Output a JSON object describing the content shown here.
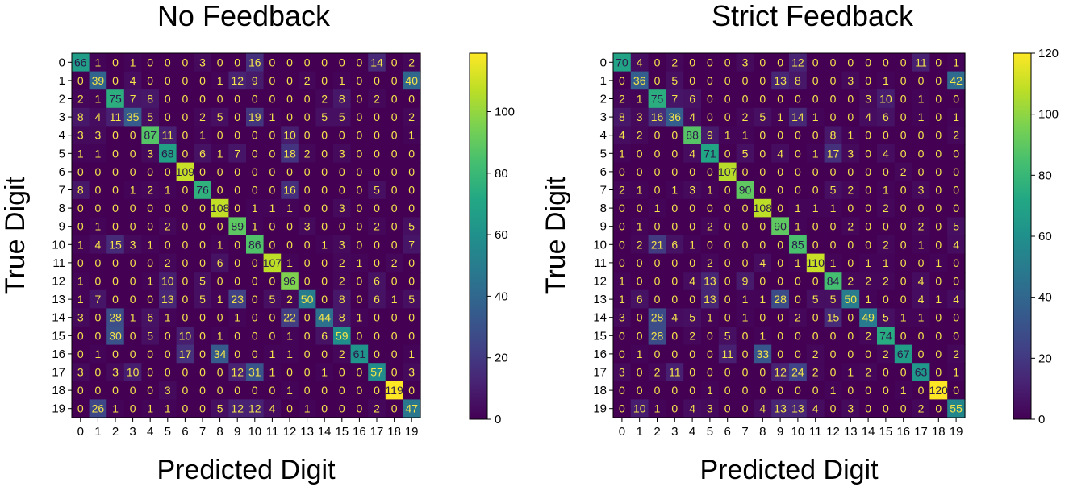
{
  "chart_data": [
    {
      "type": "heatmap",
      "title": "No Feedback",
      "xlabel": "Predicted Digit",
      "ylabel": "True Digit",
      "x_ticks": [
        "0",
        "1",
        "2",
        "3",
        "4",
        "5",
        "6",
        "7",
        "8",
        "9",
        "10",
        "11",
        "12",
        "13",
        "14",
        "15",
        "16",
        "17",
        "18",
        "19"
      ],
      "y_ticks": [
        "0",
        "1",
        "2",
        "3",
        "4",
        "5",
        "6",
        "7",
        "8",
        "9",
        "10",
        "11",
        "12",
        "13",
        "14",
        "15",
        "16",
        "17",
        "18",
        "19"
      ],
      "colorbar": {
        "min": 0,
        "max": 119,
        "ticks": [
          0,
          20,
          40,
          60,
          80,
          100
        ]
      },
      "colormap": "viridis",
      "values": [
        [
          66,
          1,
          0,
          1,
          0,
          0,
          0,
          3,
          0,
          0,
          16,
          0,
          0,
          0,
          0,
          0,
          0,
          14,
          0,
          2
        ],
        [
          0,
          39,
          0,
          4,
          0,
          0,
          0,
          0,
          1,
          12,
          9,
          0,
          0,
          2,
          0,
          1,
          0,
          0,
          0,
          40
        ],
        [
          2,
          1,
          75,
          7,
          8,
          0,
          0,
          0,
          0,
          0,
          0,
          0,
          0,
          0,
          2,
          8,
          0,
          2,
          0,
          0
        ],
        [
          8,
          4,
          11,
          35,
          5,
          0,
          0,
          2,
          5,
          0,
          19,
          1,
          0,
          0,
          5,
          5,
          0,
          0,
          0,
          2
        ],
        [
          3,
          3,
          0,
          0,
          87,
          11,
          0,
          1,
          0,
          0,
          0,
          0,
          10,
          0,
          0,
          0,
          0,
          0,
          0,
          1
        ],
        [
          1,
          1,
          0,
          0,
          3,
          68,
          0,
          6,
          1,
          7,
          0,
          0,
          18,
          2,
          0,
          3,
          0,
          0,
          0,
          0
        ],
        [
          0,
          0,
          0,
          0,
          0,
          0,
          109,
          0,
          0,
          0,
          0,
          0,
          0,
          0,
          0,
          0,
          0,
          0,
          0,
          0
        ],
        [
          8,
          0,
          0,
          1,
          2,
          1,
          0,
          76,
          0,
          0,
          0,
          0,
          16,
          0,
          0,
          0,
          0,
          5,
          0,
          0
        ],
        [
          0,
          0,
          0,
          0,
          0,
          0,
          0,
          0,
          108,
          0,
          1,
          1,
          1,
          0,
          0,
          3,
          0,
          0,
          0,
          0
        ],
        [
          0,
          1,
          0,
          0,
          0,
          2,
          0,
          0,
          0,
          89,
          1,
          0,
          0,
          3,
          0,
          0,
          0,
          2,
          0,
          5
        ],
        [
          1,
          4,
          15,
          3,
          1,
          0,
          0,
          0,
          1,
          0,
          86,
          0,
          0,
          0,
          1,
          3,
          0,
          0,
          0,
          7
        ],
        [
          0,
          0,
          0,
          0,
          0,
          2,
          0,
          0,
          6,
          0,
          0,
          107,
          1,
          0,
          0,
          2,
          1,
          0,
          2,
          0
        ],
        [
          1,
          0,
          0,
          0,
          1,
          10,
          0,
          5,
          0,
          0,
          0,
          0,
          96,
          0,
          0,
          2,
          0,
          6,
          0,
          0
        ],
        [
          1,
          7,
          0,
          0,
          0,
          13,
          0,
          5,
          1,
          23,
          0,
          5,
          2,
          50,
          0,
          8,
          0,
          6,
          1,
          5
        ],
        [
          3,
          0,
          28,
          1,
          6,
          1,
          0,
          0,
          0,
          1,
          0,
          0,
          22,
          0,
          44,
          8,
          1,
          0,
          0,
          0
        ],
        [
          0,
          0,
          30,
          0,
          5,
          0,
          10,
          0,
          1,
          0,
          0,
          0,
          1,
          0,
          6,
          59,
          0,
          0,
          0,
          0
        ],
        [
          0,
          1,
          0,
          0,
          0,
          0,
          17,
          0,
          34,
          0,
          0,
          1,
          1,
          0,
          0,
          2,
          61,
          0,
          0,
          1
        ],
        [
          3,
          0,
          3,
          10,
          0,
          0,
          0,
          0,
          0,
          12,
          31,
          1,
          0,
          0,
          1,
          0,
          0,
          57,
          0,
          3
        ],
        [
          0,
          0,
          0,
          0,
          0,
          3,
          0,
          0,
          0,
          0,
          0,
          0,
          1,
          0,
          0,
          0,
          0,
          0,
          119,
          0
        ],
        [
          0,
          26,
          1,
          0,
          1,
          1,
          0,
          0,
          5,
          12,
          12,
          4,
          0,
          1,
          0,
          0,
          0,
          2,
          0,
          47
        ]
      ]
    },
    {
      "type": "heatmap",
      "title": "Strict Feedback",
      "xlabel": "Predicted Digit",
      "ylabel": "True Digit",
      "x_ticks": [
        "0",
        "1",
        "2",
        "3",
        "4",
        "5",
        "6",
        "7",
        "8",
        "9",
        "10",
        "11",
        "12",
        "13",
        "14",
        "15",
        "16",
        "17",
        "18",
        "19"
      ],
      "y_ticks": [
        "0",
        "1",
        "2",
        "3",
        "4",
        "5",
        "6",
        "7",
        "8",
        "9",
        "10",
        "11",
        "12",
        "13",
        "14",
        "15",
        "16",
        "17",
        "18",
        "19"
      ],
      "colorbar": {
        "min": 0,
        "max": 120,
        "ticks": [
          0,
          20,
          40,
          60,
          80,
          100,
          120
        ]
      },
      "colormap": "viridis",
      "values": [
        [
          70,
          4,
          0,
          2,
          0,
          0,
          0,
          3,
          0,
          0,
          12,
          0,
          0,
          0,
          0,
          0,
          0,
          11,
          0,
          1
        ],
        [
          0,
          36,
          0,
          5,
          0,
          0,
          0,
          0,
          0,
          13,
          8,
          0,
          0,
          3,
          0,
          1,
          0,
          0,
          0,
          42
        ],
        [
          2,
          1,
          75,
          7,
          6,
          0,
          0,
          0,
          0,
          0,
          0,
          0,
          0,
          0,
          3,
          10,
          0,
          1,
          0,
          0
        ],
        [
          8,
          3,
          16,
          36,
          4,
          0,
          0,
          2,
          5,
          1,
          14,
          1,
          0,
          0,
          4,
          6,
          0,
          1,
          0,
          1
        ],
        [
          4,
          2,
          0,
          0,
          88,
          9,
          1,
          1,
          0,
          0,
          0,
          0,
          8,
          1,
          0,
          0,
          0,
          0,
          0,
          2
        ],
        [
          1,
          0,
          0,
          0,
          4,
          71,
          0,
          5,
          0,
          4,
          0,
          1,
          17,
          3,
          0,
          4,
          0,
          0,
          0,
          0
        ],
        [
          0,
          0,
          0,
          0,
          0,
          0,
          107,
          0,
          0,
          0,
          0,
          0,
          0,
          0,
          0,
          0,
          2,
          0,
          0,
          0
        ],
        [
          2,
          1,
          0,
          1,
          3,
          1,
          0,
          90,
          0,
          0,
          0,
          0,
          5,
          2,
          0,
          1,
          0,
          3,
          0,
          0
        ],
        [
          0,
          0,
          1,
          0,
          0,
          0,
          0,
          0,
          108,
          0,
          1,
          1,
          1,
          0,
          0,
          2,
          0,
          0,
          0,
          0
        ],
        [
          0,
          1,
          0,
          0,
          0,
          2,
          0,
          0,
          0,
          90,
          1,
          0,
          0,
          2,
          0,
          0,
          0,
          2,
          0,
          5
        ],
        [
          0,
          2,
          21,
          6,
          1,
          0,
          0,
          0,
          0,
          0,
          85,
          0,
          0,
          0,
          0,
          2,
          0,
          1,
          0,
          4
        ],
        [
          0,
          0,
          0,
          0,
          0,
          2,
          0,
          0,
          4,
          0,
          1,
          110,
          1,
          0,
          1,
          1,
          0,
          0,
          1,
          0
        ],
        [
          1,
          0,
          0,
          0,
          4,
          13,
          0,
          9,
          0,
          0,
          0,
          0,
          84,
          2,
          2,
          2,
          0,
          4,
          0,
          0
        ],
        [
          1,
          6,
          0,
          0,
          0,
          13,
          0,
          1,
          1,
          28,
          0,
          5,
          5,
          50,
          1,
          0,
          0,
          4,
          1,
          4
        ],
        [
          3,
          0,
          28,
          4,
          5,
          1,
          0,
          1,
          0,
          0,
          2,
          0,
          15,
          0,
          49,
          5,
          1,
          1,
          0,
          0
        ],
        [
          0,
          0,
          28,
          0,
          2,
          0,
          5,
          0,
          1,
          0,
          0,
          0,
          0,
          0,
          2,
          74,
          0,
          0,
          0,
          0
        ],
        [
          0,
          1,
          0,
          0,
          0,
          0,
          11,
          0,
          33,
          0,
          0,
          2,
          0,
          0,
          0,
          2,
          67,
          0,
          0,
          2
        ],
        [
          3,
          0,
          2,
          11,
          0,
          0,
          0,
          0,
          0,
          12,
          24,
          2,
          0,
          1,
          2,
          0,
          0,
          63,
          0,
          1
        ],
        [
          0,
          0,
          0,
          0,
          0,
          1,
          0,
          0,
          0,
          0,
          0,
          0,
          1,
          0,
          0,
          0,
          1,
          0,
          120,
          0
        ],
        [
          0,
          10,
          1,
          0,
          4,
          3,
          0,
          0,
          4,
          13,
          13,
          4,
          0,
          3,
          0,
          0,
          0,
          2,
          0,
          55
        ]
      ]
    }
  ]
}
